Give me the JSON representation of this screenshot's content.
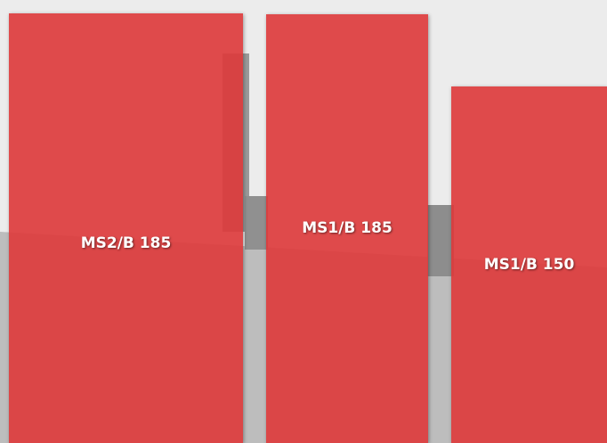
{
  "panels": [
    {
      "label": "MS2/B 185"
    },
    {
      "label": "MS1/B 185"
    },
    {
      "label": "MS1/B 150"
    }
  ]
}
